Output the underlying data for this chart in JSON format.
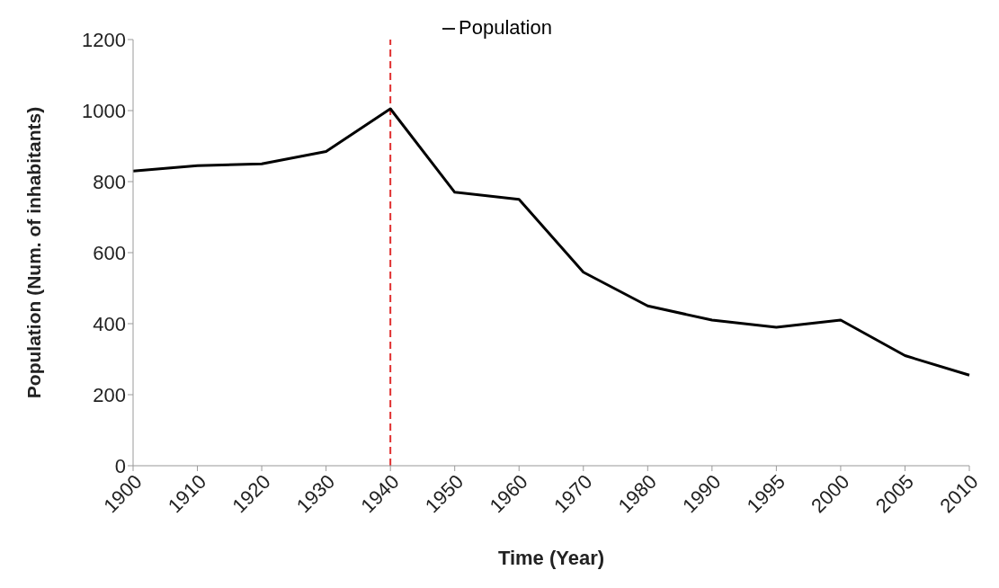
{
  "chart_data": {
    "type": "line",
    "xlabel": "Time (Year)",
    "ylabel": "Population (Num. of inhabitants)",
    "categories": [
      "1900",
      "1910",
      "1920",
      "1930",
      "1940",
      "1950",
      "1960",
      "1970",
      "1980",
      "1990",
      "1995",
      "2000",
      "2005",
      "2010"
    ],
    "series": [
      {
        "name": "Population",
        "color": "#000000",
        "values": [
          830,
          845,
          850,
          885,
          1005,
          770,
          750,
          545,
          450,
          410,
          390,
          410,
          310,
          255
        ]
      }
    ],
    "ylim": [
      0,
      1200
    ],
    "yticks": [
      0,
      200,
      400,
      600,
      800,
      1000,
      1200
    ],
    "grid": false,
    "legend": "top",
    "marker": "none",
    "line_style": "solid",
    "ref_lines": [
      {
        "axis": "x",
        "value": "1940",
        "color": "#e03030",
        "line_style": "dashed"
      }
    ]
  }
}
